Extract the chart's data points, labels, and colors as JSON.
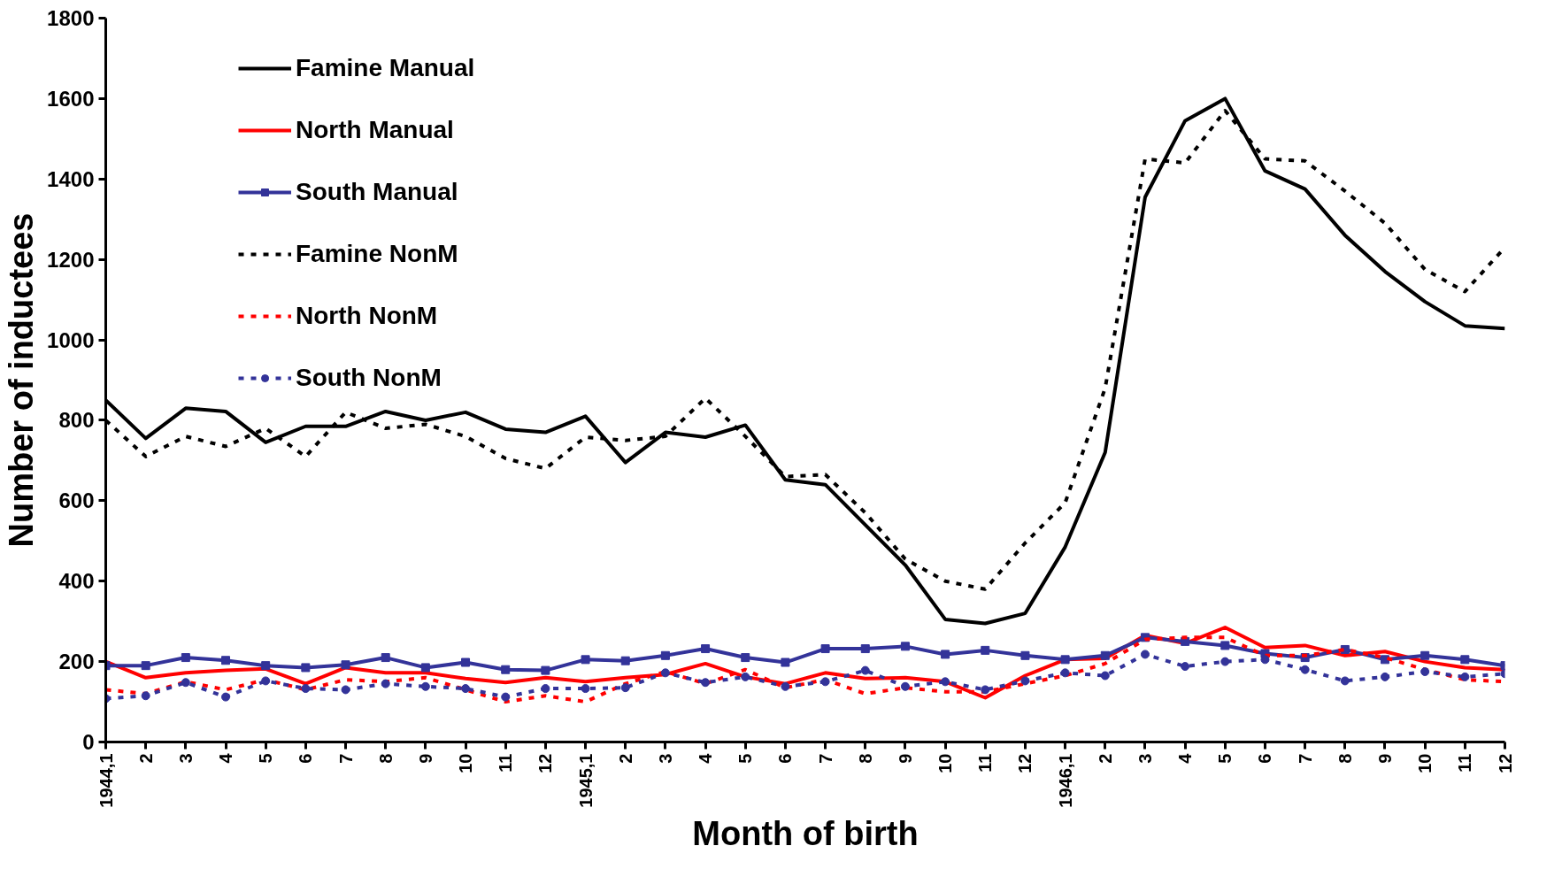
{
  "chart_data": {
    "type": "line",
    "xlabel": "Month of birth",
    "ylabel": "Number of inductees",
    "categories": [
      "1944,1",
      "2",
      "3",
      "4",
      "5",
      "6",
      "7",
      "8",
      "9",
      "10",
      "11",
      "12",
      "1945,1",
      "2",
      "3",
      "4",
      "5",
      "6",
      "7",
      "8",
      "9",
      "10",
      "11",
      "12",
      "1946,1",
      "2",
      "3",
      "4",
      "5",
      "6",
      "7",
      "8",
      "9",
      "10",
      "11",
      "12"
    ],
    "ylim": [
      0,
      1800
    ],
    "yticks": [
      0,
      200,
      400,
      600,
      800,
      1000,
      1200,
      1400,
      1600,
      1800
    ],
    "grid": false,
    "legend": "top left",
    "marker": "none",
    "line_style": "solid",
    "series": [
      {
        "name": "Famine Manual",
        "color": "#000000",
        "values": [
          850,
          755,
          830,
          822,
          745,
          785,
          785,
          822,
          800,
          820,
          778,
          770,
          810,
          695,
          770,
          758,
          788,
          652,
          640,
          540,
          440,
          305,
          295,
          320,
          485,
          720,
          1355,
          1545,
          1600,
          1420,
          1375,
          1260,
          1170,
          1095,
          1035,
          1028
        ]
      },
      {
        "name": "North Manual",
        "color": "#ff0000",
        "values": [
          200,
          160,
          172,
          178,
          182,
          145,
          185,
          172,
          172,
          158,
          148,
          160,
          150,
          160,
          168,
          195,
          162,
          145,
          172,
          158,
          160,
          150,
          110,
          165,
          205,
          208,
          265,
          245,
          285,
          235,
          240,
          215,
          225,
          200,
          185,
          180
        ]
      },
      {
        "name": "South Manual",
        "color": "#333399",
        "marker": "square",
        "values": [
          190,
          190,
          210,
          203,
          190,
          185,
          192,
          210,
          185,
          198,
          180,
          178,
          205,
          202,
          215,
          232,
          210,
          198,
          232,
          232,
          238,
          218,
          228,
          215,
          205,
          215,
          260,
          250,
          240,
          220,
          210,
          230,
          205,
          215,
          205,
          190
        ]
      },
      {
        "name": "Famine NonM",
        "color": "#000000",
        "line_style": "dashed",
        "values": [
          800,
          710,
          760,
          735,
          780,
          710,
          820,
          780,
          790,
          760,
          705,
          680,
          758,
          750,
          760,
          855,
          760,
          660,
          665,
          570,
          455,
          400,
          380,
          495,
          595,
          880,
          1450,
          1440,
          1570,
          1450,
          1445,
          1370,
          1290,
          1175,
          1120,
          1230
        ]
      },
      {
        "name": "North NonM",
        "color": "#ff0000",
        "line_style": "dashed",
        "values": [
          130,
          120,
          150,
          130,
          155,
          130,
          155,
          150,
          160,
          130,
          100,
          115,
          100,
          145,
          175,
          145,
          180,
          135,
          155,
          120,
          135,
          125,
          125,
          145,
          165,
          195,
          255,
          260,
          260,
          215,
          215,
          230,
          210,
          180,
          155,
          150
        ]
      },
      {
        "name": "South NonM",
        "color": "#333399",
        "line_style": "dashed",
        "marker": "circle",
        "values": [
          108,
          115,
          148,
          112,
          152,
          133,
          130,
          145,
          138,
          133,
          112,
          133,
          133,
          135,
          172,
          148,
          162,
          138,
          150,
          178,
          138,
          150,
          130,
          152,
          172,
          165,
          218,
          188,
          200,
          205,
          180,
          152,
          162,
          175,
          162,
          170
        ]
      }
    ]
  }
}
